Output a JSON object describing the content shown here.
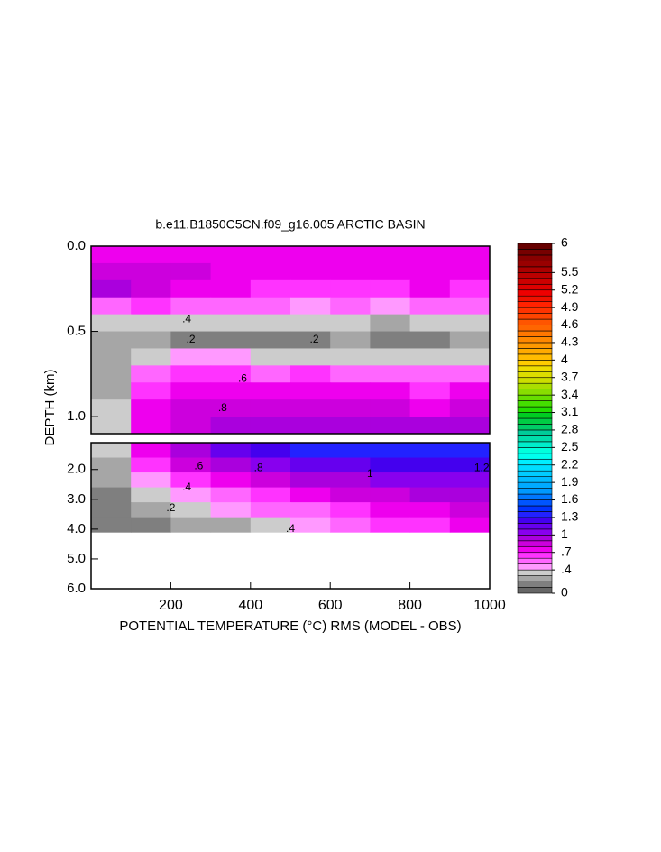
{
  "chart_data": {
    "type": "contour",
    "title": "b.e11.B1850C5CN.f09_g16.005 ARCTIC BASIN",
    "x_label": "POTENTIAL TEMPERATURE (°C) RMS (MODEL - OBS)",
    "y_label": "DEPTH (km)",
    "xlim": [
      0,
      1000
    ],
    "xticks": [
      200,
      400,
      600,
      800,
      1000
    ],
    "x": [
      50,
      150,
      250,
      350,
      450,
      550,
      650,
      750,
      850,
      950
    ],
    "panels": [
      {
        "ylim": [
          0,
          1.1
        ],
        "yticks": [
          {
            "value": 0,
            "label": "0.0"
          },
          {
            "value": 0.5,
            "label": "0.5"
          },
          {
            "value": 1,
            "label": "1.0"
          }
        ],
        "depth": [
          0.05,
          0.15,
          0.25,
          0.35,
          0.45,
          0.55,
          0.65,
          0.75,
          0.85,
          0.95,
          1.05
        ],
        "values": [
          [
            0.7,
            0.75,
            0.7,
            0.7,
            0.75,
            0.7,
            0.7,
            0.7,
            0.75,
            0.7
          ],
          [
            0.8,
            0.85,
            0.8,
            0.75,
            0.75,
            0.7,
            0.7,
            0.75,
            0.7,
            0.7
          ],
          [
            0.9,
            0.8,
            0.7,
            0.7,
            0.65,
            0.65,
            0.65,
            0.6,
            0.7,
            0.65
          ],
          [
            0.5,
            0.6,
            0.55,
            0.5,
            0.5,
            0.45,
            0.5,
            0.45,
            0.5,
            0.5
          ],
          [
            0.3,
            0.35,
            0.35,
            0.35,
            0.3,
            0.3,
            0.3,
            0.25,
            0.3,
            0.3
          ],
          [
            0.2,
            0.2,
            0.15,
            0.15,
            0.15,
            0.15,
            0.2,
            0.15,
            0.15,
            0.2
          ],
          [
            0.2,
            0.3,
            0.4,
            0.4,
            0.35,
            0.35,
            0.35,
            0.3,
            0.3,
            0.35
          ],
          [
            0.2,
            0.55,
            0.6,
            0.6,
            0.55,
            0.6,
            0.55,
            0.55,
            0.55,
            0.55
          ],
          [
            0.25,
            0.6,
            0.7,
            0.7,
            0.7,
            0.7,
            0.7,
            0.7,
            0.65,
            0.7
          ],
          [
            0.3,
            0.7,
            0.8,
            0.8,
            0.8,
            0.8,
            0.8,
            0.8,
            0.75,
            0.8
          ],
          [
            0.35,
            0.75,
            0.85,
            0.9,
            0.9,
            0.9,
            0.9,
            0.9,
            0.9,
            0.9
          ]
        ]
      },
      {
        "ylim": [
          1.1,
          6
        ],
        "yticks": [
          {
            "value": 2,
            "label": "2.0"
          },
          {
            "value": 3,
            "label": "3.0"
          },
          {
            "value": 4,
            "label": "4.0"
          },
          {
            "value": 5,
            "label": "5.0"
          },
          {
            "value": 6,
            "label": "6.0"
          }
        ],
        "depth": [
          1.35,
          1.85,
          2.35,
          2.85,
          3.35,
          3.85
        ],
        "values": [
          [
            0.3,
            0.7,
            0.9,
            1.1,
            1.2,
            1.3,
            1.3,
            1.3,
            1.3,
            1.3
          ],
          [
            0.25,
            0.6,
            0.8,
            0.9,
            1.0,
            1.1,
            1.15,
            1.2,
            1.2,
            1.25
          ],
          [
            0.2,
            0.4,
            0.6,
            0.75,
            0.85,
            0.9,
            0.95,
            1.0,
            1.0,
            1.05
          ],
          [
            0.15,
            0.3,
            0.45,
            0.55,
            0.65,
            0.75,
            0.8,
            0.85,
            0.9,
            0.95
          ],
          [
            0.1,
            0.2,
            0.3,
            0.4,
            0.5,
            0.55,
            0.65,
            0.7,
            0.75,
            0.8
          ],
          [
            0.1,
            0.15,
            0.2,
            0.25,
            0.35,
            0.45,
            0.5,
            0.6,
            0.65,
            0.7
          ]
        ]
      }
    ],
    "contour_labels": [
      {
        "text": ".2",
        "x": 250,
        "depth": 0.55
      },
      {
        "text": ".2",
        "x": 560,
        "depth": 0.55
      },
      {
        "text": ".4",
        "x": 240,
        "depth": 0.43
      },
      {
        "text": ".6",
        "x": 380,
        "depth": 0.78
      },
      {
        "text": ".8",
        "x": 330,
        "depth": 0.95
      },
      {
        "text": ".6",
        "x": 270,
        "depth": 1.9
      },
      {
        "text": ".8",
        "x": 420,
        "depth": 1.95
      },
      {
        "text": "1",
        "x": 700,
        "depth": 2.15
      },
      {
        "text": "1.2",
        "x": 980,
        "depth": 1.95
      },
      {
        "text": ".4",
        "x": 240,
        "depth": 2.6
      },
      {
        "text": ".2",
        "x": 200,
        "depth": 3.3
      },
      {
        "text": ".4",
        "x": 500,
        "depth": 4.0
      }
    ],
    "colorbar": {
      "clim": [
        0,
        6
      ],
      "ticks": [
        0,
        {
          "value": 0.4,
          "label": ".4"
        },
        {
          "value": 0.7,
          "label": ".7"
        },
        1,
        1.3,
        1.6,
        1.9,
        2.2,
        2.5,
        2.8,
        3.1,
        3.4,
        3.7,
        4,
        4.3,
        4.6,
        4.9,
        5.2,
        5.5,
        6
      ],
      "colors": [
        "#666666",
        "#7f7f7f",
        "#a6a6a6",
        "#cccccc",
        "#ff99ff",
        "#ff66ff",
        "#ff33ff",
        "#ee00ee",
        "#cc00dd",
        "#aa00dd",
        "#8800ee",
        "#6600ee",
        "#4400ee",
        "#2222ff",
        "#0033ff",
        "#0055ff",
        "#0077ff",
        "#0099ff",
        "#00aaff",
        "#00bbff",
        "#00ccff",
        "#00ddff",
        "#00eeff",
        "#00ffee",
        "#00ffdd",
        "#00eecc",
        "#00ddaa",
        "#00cc99",
        "#00cc66",
        "#00cc44",
        "#00cc22",
        "#22dd00",
        "#44dd00",
        "#66dd00",
        "#88dd00",
        "#aadd00",
        "#ccdd00",
        "#dddd00",
        "#eedd00",
        "#ffcc00",
        "#ffbb00",
        "#ffaa00",
        "#ff9900",
        "#ff8800",
        "#ff7700",
        "#ff6600",
        "#ff5500",
        "#ff4400",
        "#ff3300",
        "#ff2200",
        "#ee1100",
        "#ee0000",
        "#dd0000",
        "#cc0000",
        "#bb0000",
        "#aa0000",
        "#990000",
        "#880000",
        "#770000",
        "#660000"
      ]
    }
  }
}
